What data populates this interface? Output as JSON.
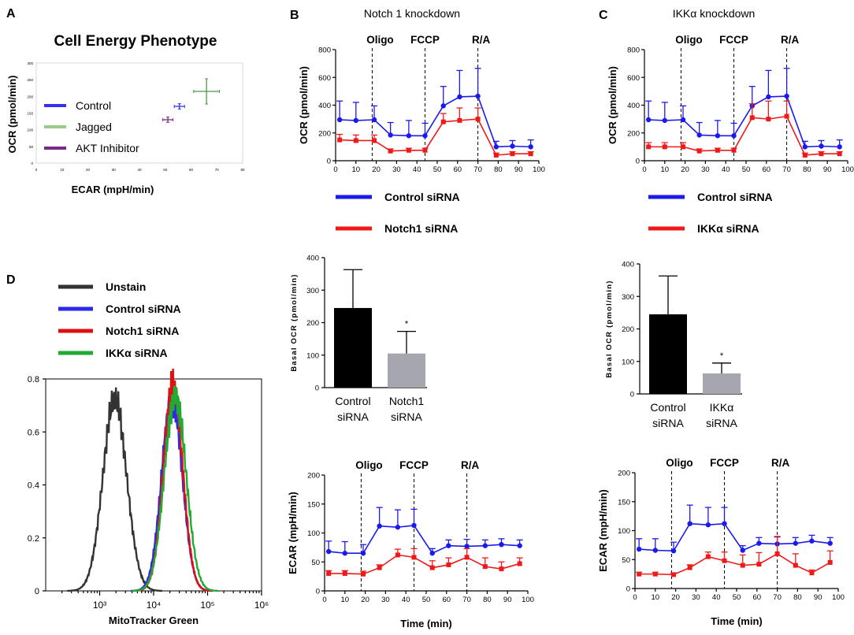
{
  "panel_letters": [
    "A",
    "B",
    "C",
    "D"
  ],
  "chart_data": [
    {
      "id": "A",
      "type": "scatter",
      "title": "Cell Energy Phenotype",
      "xlabel": "ECAR (mpH/min)",
      "ylabel": "OCR (pmol/min)",
      "xlim": [
        0,
        80
      ],
      "ylim": [
        0,
        300
      ],
      "xticks": [
        0,
        10,
        20,
        30,
        40,
        50,
        60,
        70,
        80
      ],
      "yticks": [
        0,
        50,
        100,
        150,
        200,
        250,
        300
      ],
      "xtick_labels": [
        "0",
        "10",
        "20",
        "30",
        "40",
        "50",
        "60",
        "70",
        "80"
      ],
      "ytick_labels": [
        "0",
        "50",
        "100",
        "150",
        "200",
        "250",
        "300"
      ],
      "series": [
        {
          "name": "Control",
          "color": "#3333ee",
          "x": 55.5,
          "y": 170,
          "xerr": 2,
          "yerr": 8
        },
        {
          "name": "Jagged",
          "color": "#4a9a4a",
          "legend_color": "#99cc88",
          "x": 66,
          "y": 215,
          "xerr": 5,
          "yerr": 38
        },
        {
          "name": "AKT Inhibitor",
          "color": "#7a2a8a",
          "x": 51,
          "y": 130,
          "xerr": 2,
          "yerr": 8
        }
      ]
    },
    {
      "id": "B_ocr",
      "type": "line",
      "title": "Notch 1 knockdown",
      "xlabel": "",
      "ylabel": "OCR (pmol/min)",
      "xlim": [
        0,
        100
      ],
      "ylim": [
        0,
        800
      ],
      "xticks": [
        0,
        10,
        20,
        30,
        40,
        50,
        60,
        70,
        80,
        90,
        100
      ],
      "yticks": [
        0,
        200,
        400,
        600,
        800
      ],
      "xtick_labels": [
        "0",
        "10",
        "20",
        "30",
        "40",
        "50",
        "60",
        "70",
        "80",
        "90",
        "100"
      ],
      "ytick_labels": [
        "0",
        "200",
        "400",
        "600",
        "800"
      ],
      "injections": [
        {
          "label": "Oligo",
          "x": 18
        },
        {
          "label": "FCCP",
          "x": 44
        },
        {
          "label": "R/A",
          "x": 70
        }
      ],
      "x": [
        2,
        10,
        19,
        27,
        36,
        44,
        53,
        61,
        70,
        79,
        87,
        96
      ],
      "series": [
        {
          "name": "Control siRNA",
          "color": "#1a1aee",
          "marker": "circle",
          "values": [
            295,
            290,
            295,
            185,
            180,
            180,
            395,
            460,
            465,
            100,
            105,
            100
          ],
          "err": [
            135,
            130,
            100,
            90,
            110,
            90,
            140,
            190,
            200,
            40,
            40,
            50
          ]
        },
        {
          "name": "Notch1 siRNA",
          "color": "#ee1a1a",
          "marker": "square",
          "values": [
            150,
            145,
            145,
            70,
            75,
            75,
            280,
            290,
            300,
            40,
            50,
            50
          ],
          "err": [
            40,
            40,
            40,
            15,
            15,
            15,
            60,
            90,
            80,
            15,
            15,
            15
          ]
        }
      ]
    },
    {
      "id": "C_ocr",
      "type": "line",
      "title": "IKKα knockdown",
      "xlabel": "",
      "ylabel": "OCR (pmol/min)",
      "xlim": [
        0,
        100
      ],
      "ylim": [
        0,
        800
      ],
      "xticks": [
        0,
        10,
        20,
        30,
        40,
        50,
        60,
        70,
        80,
        90,
        100
      ],
      "yticks": [
        0,
        200,
        400,
        600,
        800
      ],
      "xtick_labels": [
        "0",
        "10",
        "20",
        "30",
        "40",
        "50",
        "60",
        "70",
        "80",
        "90",
        "100"
      ],
      "ytick_labels": [
        "0",
        "200",
        "400",
        "600",
        "800"
      ],
      "injections": [
        {
          "label": "Oligo",
          "x": 18
        },
        {
          "label": "FCCP",
          "x": 44
        },
        {
          "label": "R/A",
          "x": 70
        }
      ],
      "x": [
        2,
        10,
        19,
        27,
        36,
        44,
        53,
        61,
        70,
        79,
        87,
        96
      ],
      "series": [
        {
          "name": "Control siRNA",
          "color": "#1a1aee",
          "marker": "circle",
          "values": [
            295,
            290,
            295,
            185,
            180,
            180,
            395,
            460,
            465,
            100,
            105,
            100
          ],
          "err": [
            135,
            130,
            100,
            90,
            110,
            90,
            140,
            190,
            200,
            40,
            40,
            50
          ]
        },
        {
          "name": "IKKα siRNA",
          "color": "#ee1a1a",
          "marker": "square",
          "values": [
            100,
            100,
            100,
            70,
            75,
            75,
            310,
            300,
            320,
            40,
            50,
            50
          ],
          "err": [
            30,
            30,
            30,
            15,
            15,
            15,
            100,
            130,
            110,
            15,
            15,
            15
          ]
        }
      ]
    },
    {
      "id": "B_basal",
      "type": "bar",
      "xlabel": "",
      "ylabel": "Basal OCR (pmol/min)",
      "ylim": [
        0,
        400
      ],
      "yticks": [
        0,
        100,
        200,
        300,
        400
      ],
      "ytick_labels": [
        "0",
        "100",
        "200",
        "300",
        "400"
      ],
      "categories": [
        "Control\nsiRNA",
        "Notch1\nsiRNA"
      ],
      "values": [
        245,
        105
      ],
      "err": [
        118,
        68
      ],
      "colors": [
        "#000000",
        "#a6a6ae"
      ],
      "significance": [
        "",
        "*"
      ]
    },
    {
      "id": "C_basal",
      "type": "bar",
      "xlabel": "",
      "ylabel": "Basal OCR (pmol/min)",
      "ylim": [
        0,
        400
      ],
      "yticks": [
        0,
        100,
        200,
        300,
        400
      ],
      "ytick_labels": [
        "0",
        "100",
        "200",
        "300",
        "400"
      ],
      "categories": [
        "Control\nsiRNA",
        "IKKα\nsiRNA"
      ],
      "values": [
        245,
        63
      ],
      "err": [
        118,
        32
      ],
      "colors": [
        "#000000",
        "#a6a6ae"
      ],
      "significance": [
        "",
        "*"
      ]
    },
    {
      "id": "B_ecar",
      "type": "line",
      "xlabel": "Time (min)",
      "ylabel": "ECAR (mpH/min)",
      "xlim": [
        0,
        100
      ],
      "ylim": [
        0,
        200
      ],
      "xticks": [
        0,
        10,
        20,
        30,
        40,
        50,
        60,
        70,
        80,
        90,
        100
      ],
      "yticks": [
        0,
        50,
        100,
        150,
        200
      ],
      "xtick_labels": [
        "0",
        "10",
        "20",
        "30",
        "40",
        "50",
        "60",
        "70",
        "80",
        "90",
        "100"
      ],
      "ytick_labels": [
        "0",
        "50",
        "100",
        "150",
        "200"
      ],
      "injections": [
        {
          "label": "Oligo",
          "x": 18
        },
        {
          "label": "FCCP",
          "x": 44
        },
        {
          "label": "R/A",
          "x": 70
        }
      ],
      "x": [
        2,
        10,
        19,
        27,
        36,
        44,
        53,
        61,
        70,
        79,
        87,
        96
      ],
      "series": [
        {
          "name": "Control siRNA",
          "color": "#1a1aee",
          "marker": "circle",
          "values": [
            68,
            65,
            65,
            112,
            110,
            113,
            65,
            78,
            77,
            78,
            80,
            78
          ],
          "err": [
            18,
            20,
            15,
            32,
            30,
            28,
            8,
            10,
            12,
            10,
            10,
            10
          ]
        },
        {
          "name": "Notch1 siRNA",
          "color": "#ee1a1a",
          "marker": "square",
          "values": [
            30,
            30,
            29,
            40,
            62,
            58,
            40,
            45,
            58,
            42,
            38,
            47
          ],
          "err": [
            5,
            5,
            5,
            5,
            10,
            15,
            12,
            12,
            15,
            15,
            12,
            10
          ]
        }
      ]
    },
    {
      "id": "C_ecar",
      "type": "line",
      "xlabel": "Time (min)",
      "ylabel": "ECAR (mpH/min)",
      "xlim": [
        0,
        100
      ],
      "ylim": [
        0,
        200
      ],
      "xticks": [
        0,
        10,
        20,
        30,
        40,
        50,
        60,
        70,
        80,
        90,
        100
      ],
      "yticks": [
        0,
        50,
        100,
        150,
        200
      ],
      "xtick_labels": [
        "0",
        "10",
        "20",
        "30",
        "40",
        "50",
        "60",
        "70",
        "80",
        "90",
        "100"
      ],
      "ytick_labels": [
        "0",
        "50",
        "100",
        "150",
        "200"
      ],
      "injections": [
        {
          "label": "Oligo",
          "x": 18
        },
        {
          "label": "FCCP",
          "x": 44
        },
        {
          "label": "R/A",
          "x": 70
        }
      ],
      "x": [
        2,
        10,
        19,
        27,
        36,
        44,
        53,
        61,
        70,
        79,
        87,
        96
      ],
      "series": [
        {
          "name": "Control siRNA",
          "color": "#1a1aee",
          "marker": "circle",
          "values": [
            68,
            66,
            65,
            112,
            110,
            112,
            66,
            78,
            77,
            78,
            82,
            78
          ],
          "err": [
            18,
            20,
            15,
            32,
            30,
            28,
            8,
            10,
            12,
            10,
            10,
            10
          ]
        },
        {
          "name": "IKKα siRNA",
          "color": "#ee1a1a",
          "marker": "square",
          "values": [
            25,
            25,
            24,
            36,
            55,
            48,
            40,
            42,
            60,
            40,
            27,
            45
          ],
          "err": [
            3,
            3,
            3,
            5,
            8,
            15,
            18,
            20,
            30,
            20,
            5,
            20
          ]
        }
      ]
    },
    {
      "id": "D",
      "type": "line",
      "xlabel": "MitoTracker Green",
      "ylabel": "",
      "xscale": "log",
      "xlim": [
        100,
        1000000
      ],
      "ylim": [
        0,
        0.8
      ],
      "xticks": [
        1000,
        10000,
        100000,
        1000000
      ],
      "xtick_labels": [
        "10³",
        "10⁴",
        "10⁵",
        "10⁶"
      ],
      "yticks": [
        0,
        0.2,
        0.4,
        0.6,
        0.8
      ],
      "ytick_labels": [
        "0",
        "0.2",
        "0.4",
        "0.6",
        "0.8"
      ],
      "series": [
        {
          "name": "Unstain",
          "color": "#333333",
          "center_log": 3.28,
          "sigma": 0.22,
          "peak": 0.72
        },
        {
          "name": "Control siRNA",
          "color": "#2a2aee",
          "center_log": 4.34,
          "sigma": 0.19,
          "peak": 0.73
        },
        {
          "name": "Notch1 siRNA",
          "color": "#dd1111",
          "center_log": 4.36,
          "sigma": 0.18,
          "peak": 0.77
        },
        {
          "name": "IKKα siRNA",
          "color": "#22aa33",
          "center_log": 4.4,
          "sigma": 0.2,
          "peak": 0.74
        }
      ]
    }
  ]
}
